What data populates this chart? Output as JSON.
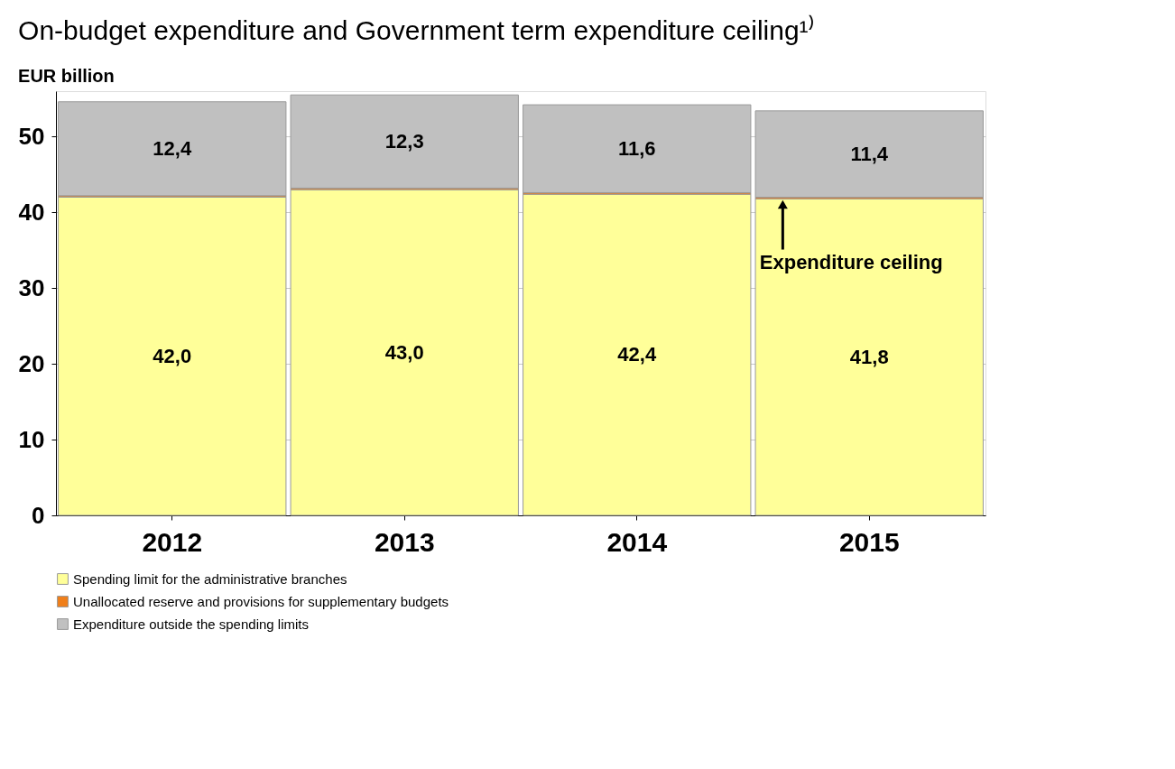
{
  "chart_data": {
    "type": "bar",
    "stacked": true,
    "title": "On-budget expenditure and Government term expenditure ceiling¹⁾",
    "ylabel": "EUR billion",
    "categories": [
      "2012",
      "2013",
      "2014",
      "2015"
    ],
    "series": [
      {
        "name": "Spending limit for the administrative branches",
        "color": "#ffff99",
        "values": [
          42.0,
          43.0,
          42.4,
          41.8
        ],
        "value_labels": [
          "42,0",
          "43,0",
          "42,4",
          "41,8"
        ]
      },
      {
        "name": "Unallocated reserve and provisions for supplementary budgets",
        "color": "#f07f1a",
        "values": [
          0.2,
          0.2,
          0.2,
          0.2
        ]
      },
      {
        "name": "Expenditure outside the spending limits",
        "color": "#c0c0c0",
        "values": [
          12.4,
          12.3,
          11.6,
          11.4
        ],
        "value_labels": [
          "12,4",
          "12,3",
          "11,6",
          "11,4"
        ]
      }
    ],
    "ylim": [
      0,
      56
    ],
    "yticks": [
      0,
      10,
      20,
      30,
      40,
      50
    ],
    "grid": "y",
    "legend": "bottom",
    "annotations": [
      {
        "text": "Expenditure ceiling",
        "x": "2015",
        "y": 42.0
      }
    ]
  }
}
